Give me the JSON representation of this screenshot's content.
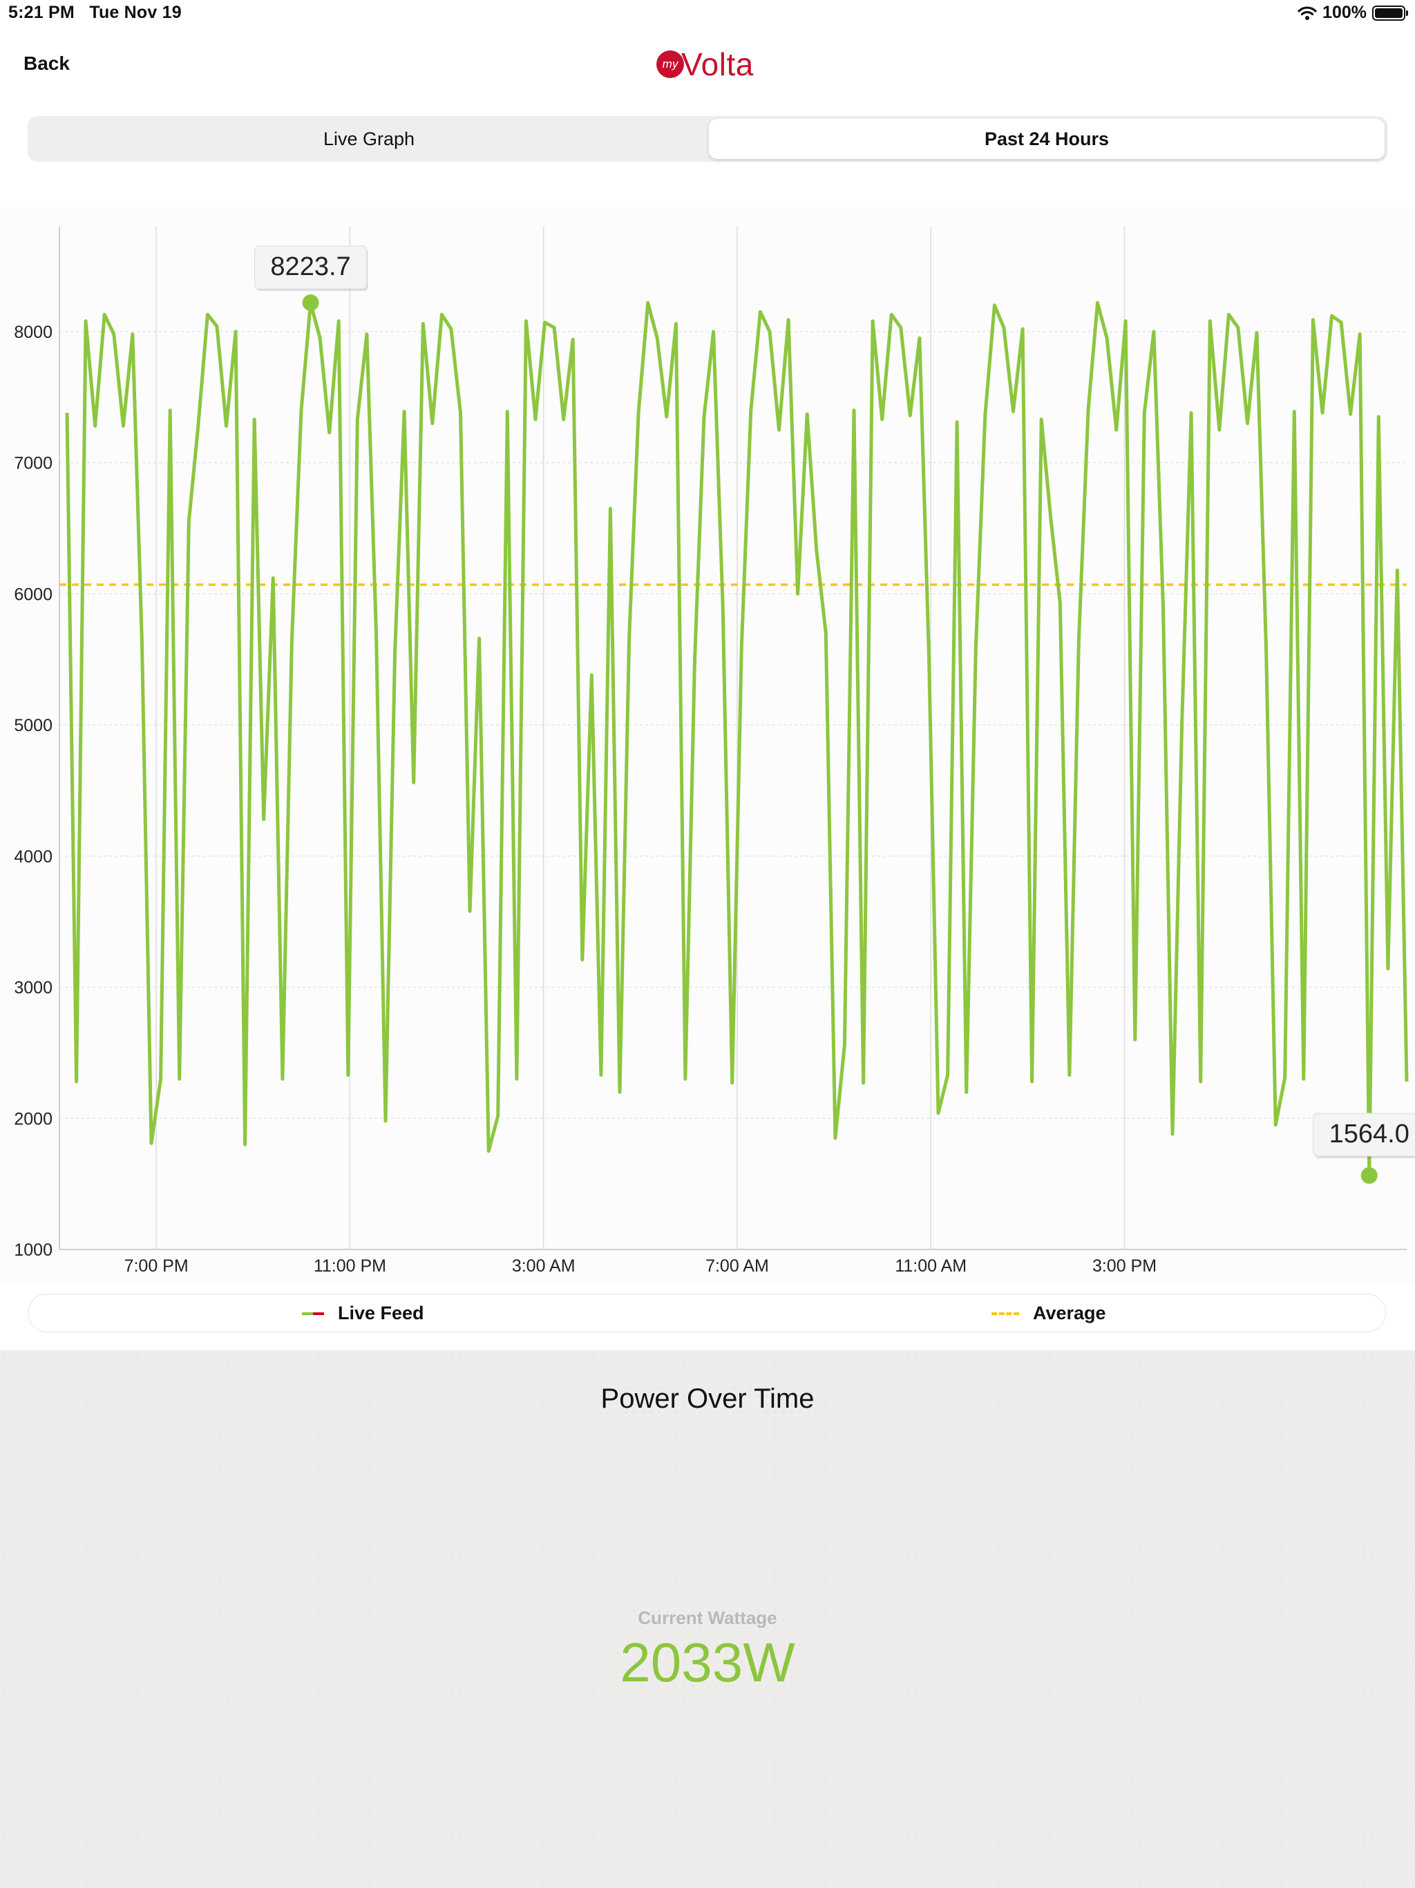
{
  "status_bar": {
    "time": "5:21 PM",
    "date": "Tue Nov 19",
    "battery": "100%",
    "wifi_icon": "wifi-icon",
    "battery_icon": "battery-icon"
  },
  "nav": {
    "back_label": "Back",
    "logo_prefix": "my",
    "logo_text": "Volta"
  },
  "tabs": [
    {
      "label": "Live Graph",
      "selected": false
    },
    {
      "label": "Past 24 Hours",
      "selected": true
    }
  ],
  "chart_data": {
    "type": "line",
    "ylim": [
      1000,
      8800
    ],
    "yticks": [
      1000,
      2000,
      3000,
      4000,
      5000,
      6000,
      7000,
      8000
    ],
    "x_domain_hours": [
      17.0,
      20.83
    ],
    "xtick_labels": [
      "7:00 PM",
      "11:00 PM",
      "3:00 AM",
      "7:00 AM",
      "11:00 AM",
      "3:00 PM"
    ],
    "average": 6070,
    "max_label": "8223.7",
    "min_label": "1564.0",
    "series": [
      {
        "name": "Live Feed",
        "color": "#8cc63f",
        "values": [
          7380,
          2280,
          8080,
          7280,
          8130,
          7980,
          7280,
          7980,
          5620,
          1810,
          2300,
          7400,
          2300,
          6550,
          7280,
          8130,
          8040,
          7280,
          8000,
          1800,
          7330,
          4280,
          6120,
          2300,
          5650,
          7400,
          8220,
          7950,
          7230,
          8080,
          2330,
          7330,
          7980,
          5700,
          1980,
          5560,
          7390,
          4560,
          8060,
          7300,
          8130,
          8020,
          7380,
          3580,
          5660,
          1750,
          2020,
          7390,
          2300,
          8080,
          7330,
          8070,
          8030,
          7330,
          7940,
          3210,
          5380,
          2330,
          6650,
          2200,
          5660,
          7380,
          8220,
          7950,
          7350,
          8060,
          2300,
          5500,
          7350,
          8000,
          5900,
          2270,
          5600,
          7400,
          8150,
          8000,
          7250,
          8090,
          6000,
          7370,
          6330,
          5700,
          1850,
          2560,
          7400,
          2270,
          8080,
          7330,
          8130,
          8030,
          7360,
          7950,
          5520,
          2040,
          2330,
          7310,
          2200,
          5580,
          7360,
          8200,
          8030,
          7390,
          8020,
          2280,
          7330,
          6580,
          5930,
          2330,
          5650,
          7400,
          8220,
          7950,
          7250,
          8080,
          2600,
          7380,
          8000,
          5900,
          1880,
          5000,
          7380,
          2280,
          8080,
          7250,
          8130,
          8030,
          7300,
          7990,
          5570,
          1950,
          2310,
          7390,
          2300,
          8090,
          7380,
          8120,
          8070,
          7370,
          7980,
          1564,
          7350,
          3140,
          6180,
          2280
        ]
      },
      {
        "name": "Average",
        "color": "#f5c518"
      }
    ]
  },
  "legend": {
    "live_label": "Live Feed",
    "avg_label": "Average"
  },
  "panel": {
    "title": "Power Over Time",
    "wattage_label": "Current Wattage",
    "wattage_value": "2033W"
  }
}
